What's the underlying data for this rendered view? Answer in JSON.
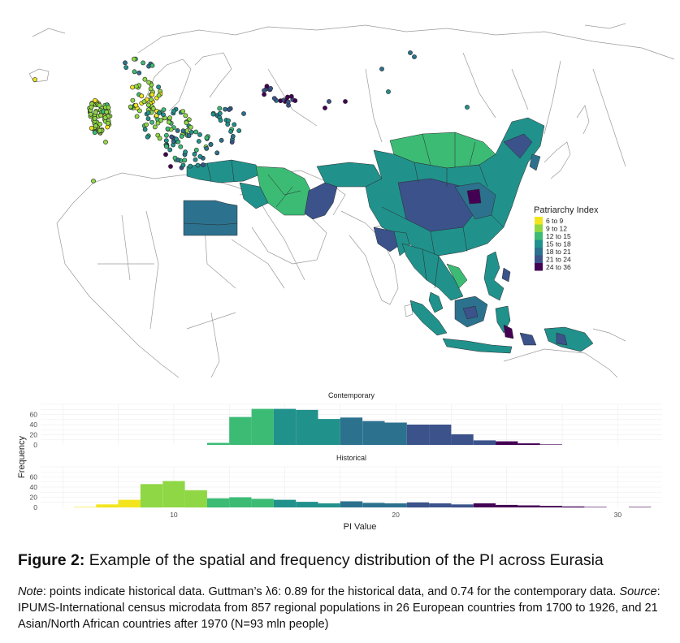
{
  "map": {
    "legend": {
      "title": "Patriarchy Index",
      "items": [
        {
          "label": "6 to 9",
          "color": "#f2e51d"
        },
        {
          "label": "9 to 12",
          "color": "#8fd744"
        },
        {
          "label": "12 to 15",
          "color": "#3cbb75"
        },
        {
          "label": "15 to 18",
          "color": "#21918c"
        },
        {
          "label": "18 to 21",
          "color": "#2c728e"
        },
        {
          "label": "21 to 24",
          "color": "#3b528b"
        },
        {
          "label": "24 to 36",
          "color": "#440154"
        }
      ]
    }
  },
  "chart_data": [
    {
      "type": "bar",
      "title": "Contemporary",
      "xlabel": "PI Value",
      "ylabel": "Frequency",
      "xlim": [
        4,
        32
      ],
      "ylim": [
        0,
        80
      ],
      "yticks": [
        0,
        20,
        40,
        60
      ],
      "xticks": [
        10,
        20,
        30
      ],
      "bin_width": 1,
      "bins": [
        {
          "start": 11.5,
          "value": 4,
          "color": "#3cbb75"
        },
        {
          "start": 12.5,
          "value": 55,
          "color": "#3cbb75"
        },
        {
          "start": 13.5,
          "value": 71,
          "color": "#3cbb75"
        },
        {
          "start": 14.5,
          "value": 71,
          "color": "#21918c"
        },
        {
          "start": 15.5,
          "value": 69,
          "color": "#21918c"
        },
        {
          "start": 16.5,
          "value": 51,
          "color": "#21918c"
        },
        {
          "start": 17.5,
          "value": 54,
          "color": "#2c728e"
        },
        {
          "start": 18.5,
          "value": 47,
          "color": "#2c728e"
        },
        {
          "start": 19.5,
          "value": 44,
          "color": "#2c728e"
        },
        {
          "start": 20.5,
          "value": 40,
          "color": "#3b528b"
        },
        {
          "start": 21.5,
          "value": 40,
          "color": "#3b528b"
        },
        {
          "start": 22.5,
          "value": 21,
          "color": "#3b528b"
        },
        {
          "start": 23.5,
          "value": 9,
          "color": "#3b528b"
        },
        {
          "start": 24.5,
          "value": 7,
          "color": "#440154"
        },
        {
          "start": 25.5,
          "value": 3,
          "color": "#440154"
        },
        {
          "start": 26.5,
          "value": 1,
          "color": "#440154"
        }
      ]
    },
    {
      "type": "bar",
      "title": "Historical",
      "xlabel": "PI Value",
      "ylabel": "Frequency",
      "xlim": [
        4,
        32
      ],
      "ylim": [
        0,
        80
      ],
      "yticks": [
        0,
        20,
        40,
        60
      ],
      "xticks": [
        10,
        20,
        30
      ],
      "bin_width": 1,
      "bins": [
        {
          "start": 5.5,
          "value": 1,
          "color": "#f2e51d"
        },
        {
          "start": 6.5,
          "value": 6,
          "color": "#f2e51d"
        },
        {
          "start": 7.5,
          "value": 15,
          "color": "#f2e51d"
        },
        {
          "start": 8.5,
          "value": 46,
          "color": "#8fd744"
        },
        {
          "start": 9.5,
          "value": 52,
          "color": "#8fd744"
        },
        {
          "start": 10.5,
          "value": 34,
          "color": "#8fd744"
        },
        {
          "start": 11.5,
          "value": 18,
          "color": "#3cbb75"
        },
        {
          "start": 12.5,
          "value": 20,
          "color": "#3cbb75"
        },
        {
          "start": 13.5,
          "value": 17,
          "color": "#3cbb75"
        },
        {
          "start": 14.5,
          "value": 15,
          "color": "#21918c"
        },
        {
          "start": 15.5,
          "value": 11,
          "color": "#21918c"
        },
        {
          "start": 16.5,
          "value": 8,
          "color": "#21918c"
        },
        {
          "start": 17.5,
          "value": 12,
          "color": "#2c728e"
        },
        {
          "start": 18.5,
          "value": 9,
          "color": "#2c728e"
        },
        {
          "start": 19.5,
          "value": 8,
          "color": "#2c728e"
        },
        {
          "start": 20.5,
          "value": 10,
          "color": "#3b528b"
        },
        {
          "start": 21.5,
          "value": 8,
          "color": "#3b528b"
        },
        {
          "start": 22.5,
          "value": 6,
          "color": "#3b528b"
        },
        {
          "start": 23.5,
          "value": 8,
          "color": "#440154"
        },
        {
          "start": 24.5,
          "value": 5,
          "color": "#440154"
        },
        {
          "start": 25.5,
          "value": 4,
          "color": "#440154"
        },
        {
          "start": 26.5,
          "value": 3,
          "color": "#440154"
        },
        {
          "start": 27.5,
          "value": 2,
          "color": "#440154"
        },
        {
          "start": 28.5,
          "value": 1,
          "color": "#440154"
        },
        {
          "start": 30.5,
          "value": 1,
          "color": "#440154"
        }
      ]
    }
  ],
  "caption": {
    "figure_label": "Figure 2:",
    "figure_title": " Example of the spatial and frequency distribution of the PI across Eurasia",
    "note_label": "Note",
    "note_text": ": points indicate historical data. Guttman’s λ6: 0.89 for the historical data, and 0.74 for the contemporary data. ",
    "source_label": "Source",
    "source_text": ": IPUMS-International census microdata from 857 regional populations in 26 European countries from 1700 to 1926, and 21 Asian/North African countries after 1970 (N=93 mln people)"
  }
}
